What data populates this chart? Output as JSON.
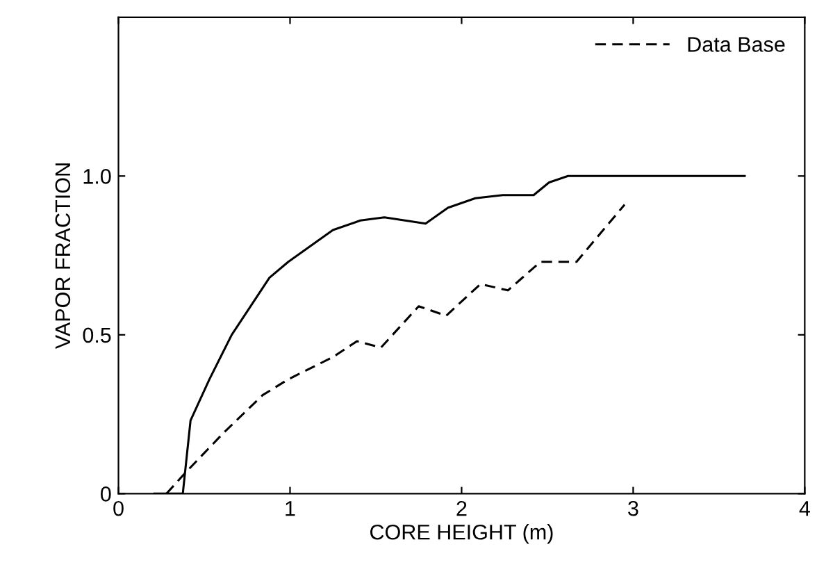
{
  "chart_data": {
    "type": "line",
    "xlabel": "CORE HEIGHT (m)",
    "ylabel": "VAPOR FRACTION",
    "xlim": [
      0,
      4
    ],
    "ylim": [
      0,
      1.5
    ],
    "xticks": [
      0,
      1,
      2,
      3,
      4
    ],
    "yticks": [
      0,
      0.5,
      {
        "value": 1.0,
        "label": "1.0"
      }
    ],
    "grid": false,
    "legend": "top right",
    "series": [
      {
        "color": "#000000",
        "line_style": "solid",
        "x": [
          0.21,
          0.375,
          0.42,
          0.53,
          0.66,
          0.88,
          0.99,
          1.25,
          1.41,
          1.55,
          1.79,
          1.92,
          2.08,
          2.24,
          2.42,
          2.51,
          2.62,
          3.65
        ],
        "values": [
          0,
          0,
          0.23,
          0.36,
          0.5,
          0.68,
          0.73,
          0.83,
          0.86,
          0.87,
          0.85,
          0.9,
          0.93,
          0.94,
          0.94,
          0.98,
          1.0,
          1.0
        ]
      },
      {
        "name": "Data Base",
        "color": "#000000",
        "line_style": "dashed",
        "x": [
          0.28,
          0.38,
          0.61,
          0.84,
          0.99,
          1.25,
          1.39,
          1.53,
          1.75,
          1.91,
          2.11,
          2.27,
          2.46,
          2.67,
          2.95
        ],
        "values": [
          0,
          0.06,
          0.19,
          0.31,
          0.36,
          0.43,
          0.48,
          0.46,
          0.59,
          0.56,
          0.66,
          0.64,
          0.73,
          0.73,
          0.91
        ]
      }
    ]
  }
}
